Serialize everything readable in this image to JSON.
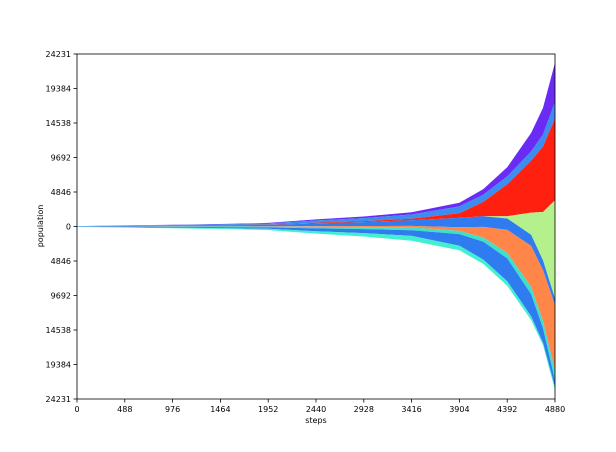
{
  "chart_data": {
    "type": "area",
    "subtype": "streamgraph (symmetric baseline)",
    "xlabel": "steps",
    "ylabel": "population",
    "xlim": [
      0,
      4880
    ],
    "ylim": [
      -24231,
      24231
    ],
    "x_ticks": [
      "0",
      "488",
      "976",
      "1464",
      "1952",
      "2440",
      "2928",
      "3416",
      "3904",
      "4392",
      "4880"
    ],
    "y_ticks": [
      "24231",
      "19384",
      "14538",
      "9692",
      "4846",
      "0",
      "4846",
      "9692",
      "14538",
      "19384",
      "24231"
    ],
    "y_tick_values": [
      24231,
      19384,
      14538,
      9692,
      4846,
      0,
      -4846,
      -9692,
      -14538,
      -19384,
      -24231
    ],
    "grid": false,
    "legend": "none",
    "x": [
      0,
      488,
      976,
      1464,
      1952,
      2440,
      2928,
      3416,
      3904,
      4148,
      4392,
      4636,
      4758,
      4880
    ],
    "series": [
      {
        "color": "#6a2cf5",
        "values": [
          8,
          24,
          40,
          56,
          80,
          160,
          224,
          320,
          520,
          800,
          1280,
          2600,
          3740,
          5520
        ]
      },
      {
        "color": "#3d8cf0",
        "values": [
          15,
          45,
          75,
          105,
          150,
          300,
          420,
          600,
          975,
          1000,
          1120,
          1300,
          1700,
          2300
        ]
      },
      {
        "color": "#ff2010",
        "values": [
          5,
          15,
          25,
          35,
          50,
          100,
          140,
          200,
          650,
          2000,
          4480,
          7280,
          9180,
          11500
        ]
      },
      {
        "color": "#b4f08c",
        "values": [
          0,
          0,
          0,
          0,
          0,
          0,
          0,
          0,
          0,
          0,
          320,
          3120,
          6800,
          13800
        ]
      },
      {
        "color": "#2f7cf0",
        "values": [
          20,
          60,
          100,
          140,
          200,
          400,
          560,
          800,
          1300,
          1500,
          1600,
          1560,
          1360,
          920
        ]
      },
      {
        "color": "#ff8548",
        "values": [
          5,
          15,
          25,
          35,
          50,
          100,
          140,
          200,
          520,
          1500,
          3200,
          5720,
          7140,
          9200
        ]
      },
      {
        "color": "#40e0c8",
        "values": [
          10,
          30,
          50,
          70,
          100,
          200,
          280,
          400,
          455,
          600,
          800,
          1040,
          1020,
          1380
        ]
      },
      {
        "color": "#2f7cf0",
        "values": [
          20,
          60,
          100,
          140,
          200,
          400,
          560,
          800,
          1625,
          2500,
          3200,
          3120,
          2040,
          920
        ]
      },
      {
        "color": "#40f0d0",
        "values": [
          17,
          51,
          85,
          119,
          170,
          340,
          476,
          680,
          650,
          600,
          640,
          520,
          340,
          460
        ]
      }
    ]
  }
}
